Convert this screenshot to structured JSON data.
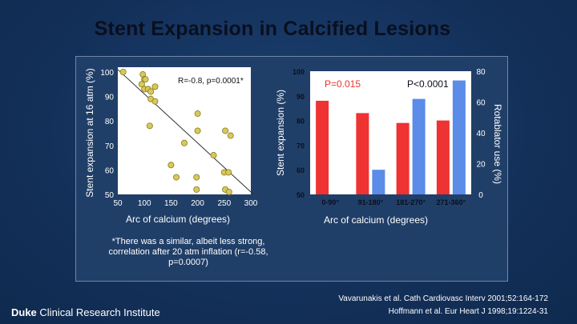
{
  "slide": {
    "title": "Stent Expansion in Calcified Lesions",
    "footnote": "*There was a similar, albeit less strong, correlation after 20 atm inflation (r=-0.58, p=0.0007)",
    "logo": {
      "bold": "Duke",
      "rest": " Clinical Research Institute"
    },
    "references": [
      "Vavarunakis et al. Cath Cardiovasc Interv 2001;52:164-172",
      "Hoffmann et al. Eur Heart J 1998;19:1224-31"
    ]
  },
  "chart_data": [
    {
      "type": "scatter",
      "title": "",
      "xlabel": "Arc of calcium (degrees)",
      "ylabel": "Stent expansion at 16 atm (%)",
      "xlim": [
        50,
        300
      ],
      "ylim": [
        50,
        100
      ],
      "xticks": [
        "50",
        "100",
        "150",
        "200",
        "250",
        "300"
      ],
      "yticks": [
        "50",
        "60",
        "70",
        "80",
        "90",
        "100"
      ],
      "annotation": "R=-0.8, p=0.0001*",
      "trendline": {
        "x": [
          50,
          305
        ],
        "y": [
          101,
          50
        ]
      },
      "points": [
        {
          "x": 60,
          "y": 100
        },
        {
          "x": 97,
          "y": 99
        },
        {
          "x": 100,
          "y": 97
        },
        {
          "x": 102,
          "y": 97
        },
        {
          "x": 95,
          "y": 95
        },
        {
          "x": 100,
          "y": 93
        },
        {
          "x": 107,
          "y": 93
        },
        {
          "x": 112,
          "y": 92
        },
        {
          "x": 120,
          "y": 94
        },
        {
          "x": 112,
          "y": 89
        },
        {
          "x": 120,
          "y": 88
        },
        {
          "x": 200,
          "y": 83
        },
        {
          "x": 110,
          "y": 78
        },
        {
          "x": 200,
          "y": 76
        },
        {
          "x": 252,
          "y": 76
        },
        {
          "x": 262,
          "y": 74
        },
        {
          "x": 175,
          "y": 71
        },
        {
          "x": 230,
          "y": 66
        },
        {
          "x": 150,
          "y": 62
        },
        {
          "x": 160,
          "y": 57
        },
        {
          "x": 198,
          "y": 57
        },
        {
          "x": 250,
          "y": 59
        },
        {
          "x": 258,
          "y": 59
        },
        {
          "x": 198,
          "y": 52
        },
        {
          "x": 252,
          "y": 52
        },
        {
          "x": 259,
          "y": 51
        }
      ]
    },
    {
      "type": "bar",
      "title": "",
      "xlabel": "Arc of calcium (degrees)",
      "ylabel": "Stent expansion (%)",
      "y2label": "Rotablator use (%)",
      "ylim": [
        50,
        100
      ],
      "y2lim": [
        0,
        80
      ],
      "yticks": [
        "50",
        "60",
        "70",
        "80",
        "90",
        "100"
      ],
      "y2ticks": [
        "0",
        "20",
        "40",
        "60",
        "80"
      ],
      "categories": [
        "0-90°",
        "91-180°",
        "181-270°",
        "271-360°"
      ],
      "series": [
        {
          "name": "Stent expansion (%)",
          "axis": "left",
          "color": "#ef3232",
          "values": [
            88,
            83,
            79,
            80
          ]
        },
        {
          "name": "Rotablator use (%)",
          "axis": "right",
          "color": "#5a8ce8",
          "values": [
            null,
            16,
            62,
            74
          ]
        }
      ],
      "annotations": [
        "P=0.015",
        "P<0.0001"
      ]
    }
  ]
}
